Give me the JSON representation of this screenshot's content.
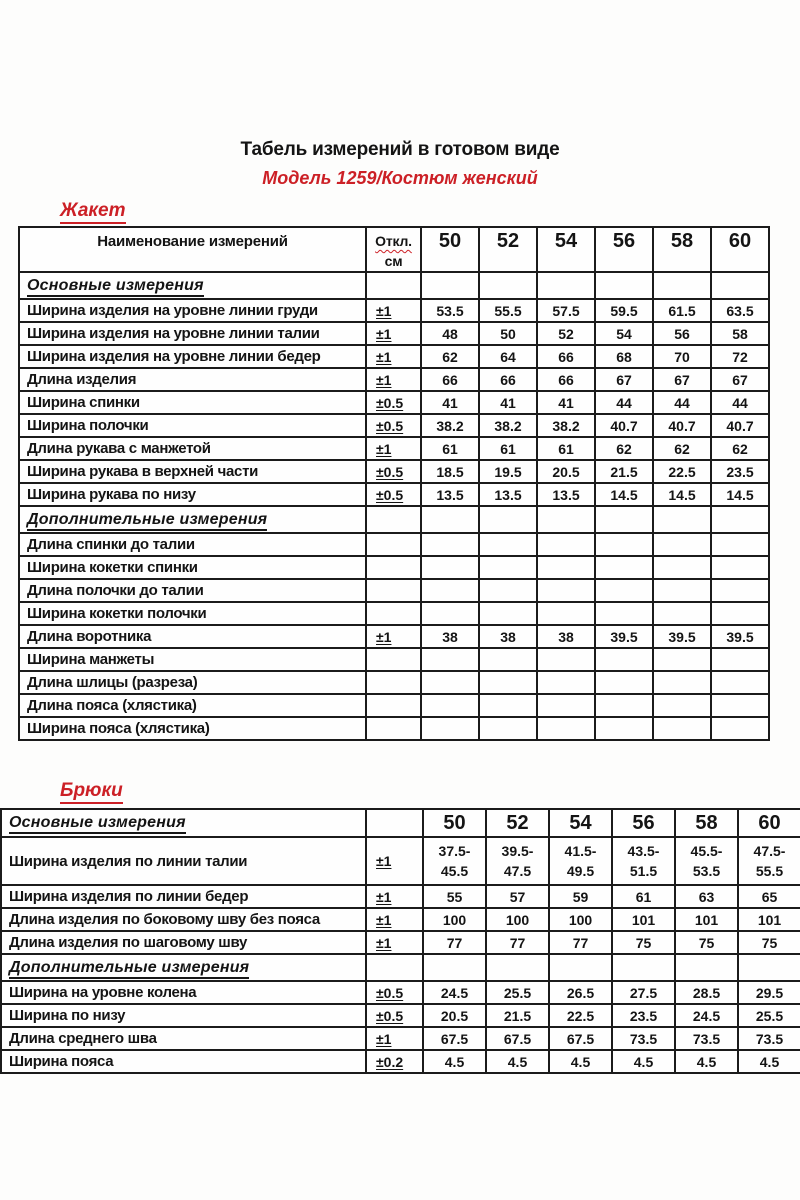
{
  "header": {
    "title": "Табель измерений в готовом виде",
    "subtitle": "Модель 1259/Костюм женский"
  },
  "colors": {
    "accent_red": "#cc2026",
    "border": "#1b1b1b",
    "text": "#141414"
  },
  "jacket": {
    "label": "Жакет",
    "columns": {
      "name": "Наименование измерений",
      "tolerance_line1": "Откл.",
      "tolerance_line2": "см",
      "sizes": [
        "50",
        "52",
        "54",
        "56",
        "58",
        "60"
      ]
    },
    "rows": [
      {
        "section": "Основные измерения"
      },
      {
        "name": "Ширина изделия на уровне линии груди",
        "tolerance": "±1",
        "values": [
          "53.5",
          "55.5",
          "57.5",
          "59.5",
          "61.5",
          "63.5"
        ]
      },
      {
        "name": "Ширина изделия на уровне линии талии",
        "tolerance": "±1",
        "values": [
          "48",
          "50",
          "52",
          "54",
          "56",
          "58"
        ]
      },
      {
        "name": "Ширина изделия на уровне линии бедер",
        "tolerance": "±1",
        "values": [
          "62",
          "64",
          "66",
          "68",
          "70",
          "72"
        ]
      },
      {
        "name": "Длина изделия",
        "tolerance": "±1",
        "values": [
          "66",
          "66",
          "66",
          "67",
          "67",
          "67"
        ]
      },
      {
        "name": "Ширина спинки",
        "tolerance": "±0.5",
        "values": [
          "41",
          "41",
          "41",
          "44",
          "44",
          "44"
        ]
      },
      {
        "name": "Ширина полочки",
        "tolerance": "±0.5",
        "values": [
          "38.2",
          "38.2",
          "38.2",
          "40.7",
          "40.7",
          "40.7"
        ]
      },
      {
        "name": "Длина рукава с манжетой",
        "tolerance": "±1",
        "values": [
          "61",
          "61",
          "61",
          "62",
          "62",
          "62"
        ]
      },
      {
        "name": "Ширина рукава в верхней части",
        "tolerance": "±0.5",
        "values": [
          "18.5",
          "19.5",
          "20.5",
          "21.5",
          "22.5",
          "23.5"
        ]
      },
      {
        "name": "Ширина рукава по низу",
        "tolerance": "±0.5",
        "values": [
          "13.5",
          "13.5",
          "13.5",
          "14.5",
          "14.5",
          "14.5"
        ]
      },
      {
        "section": "Дополнительные измерения"
      },
      {
        "name": "Длина спинки до талии",
        "tolerance": "",
        "values": [
          "",
          "",
          "",
          "",
          "",
          ""
        ]
      },
      {
        "name": "Ширина кокетки спинки",
        "tolerance": "",
        "values": [
          "",
          "",
          "",
          "",
          "",
          ""
        ]
      },
      {
        "name": "Длина полочки до талии",
        "tolerance": "",
        "values": [
          "",
          "",
          "",
          "",
          "",
          ""
        ]
      },
      {
        "name": "Ширина кокетки полочки",
        "tolerance": "",
        "values": [
          "",
          "",
          "",
          "",
          "",
          ""
        ]
      },
      {
        "name": "Длина воротника",
        "tolerance": "±1",
        "values": [
          "38",
          "38",
          "38",
          "39.5",
          "39.5",
          "39.5"
        ]
      },
      {
        "name": "Ширина манжеты",
        "tolerance": "",
        "values": [
          "",
          "",
          "",
          "",
          "",
          ""
        ]
      },
      {
        "name": "Длина шлицы (разреза)",
        "tolerance": "",
        "values": [
          "",
          "",
          "",
          "",
          "",
          ""
        ]
      },
      {
        "name": "Длина пояса (хлястика)",
        "tolerance": "",
        "values": [
          "",
          "",
          "",
          "",
          "",
          ""
        ]
      },
      {
        "name": "Ширина пояса (хлястика)",
        "tolerance": "",
        "values": [
          "",
          "",
          "",
          "",
          "",
          ""
        ]
      }
    ]
  },
  "trousers": {
    "label": "Брюки",
    "columns": {
      "first_header": "Основные измерения",
      "sizes": [
        "50",
        "52",
        "54",
        "56",
        "58",
        "60"
      ]
    },
    "rows": [
      {
        "name": "Ширина изделия по линии талии",
        "tolerance": "±1",
        "values": [
          "37.5-\n45.5",
          "39.5-\n47.5",
          "41.5-\n49.5",
          "43.5-\n51.5",
          "45.5-\n53.5",
          "47.5-\n55.5"
        ]
      },
      {
        "name": "Ширина изделия по линии  бедер",
        "tolerance": "±1",
        "values": [
          "55",
          "57",
          "59",
          "61",
          "63",
          "65"
        ]
      },
      {
        "name": "Длина изделия по боковому шву без пояса",
        "tolerance": "±1",
        "values": [
          "100",
          "100",
          "100",
          "101",
          "101",
          "101"
        ]
      },
      {
        "name": "Длина изделия по шаговому шву",
        "tolerance": "±1",
        "values": [
          "77",
          "77",
          "77",
          "75",
          "75",
          "75"
        ]
      },
      {
        "section": "Дополнительные измерения"
      },
      {
        "name": "Ширина на уровне колена",
        "tolerance": "±0.5",
        "values": [
          "24.5",
          "25.5",
          "26.5",
          "27.5",
          "28.5",
          "29.5"
        ]
      },
      {
        "name": "Ширина по низу",
        "tolerance": "±0.5",
        "values": [
          "20.5",
          "21.5",
          "22.5",
          "23.5",
          "24.5",
          "25.5"
        ]
      },
      {
        "name": "Длина среднего шва",
        "tolerance": "±1",
        "values": [
          "67.5",
          "67.5",
          "67.5",
          "73.5",
          "73.5",
          "73.5"
        ]
      },
      {
        "name": "Ширина пояса",
        "tolerance": "±0.2",
        "values": [
          "4.5",
          "4.5",
          "4.5",
          "4.5",
          "4.5",
          "4.5"
        ]
      }
    ]
  }
}
